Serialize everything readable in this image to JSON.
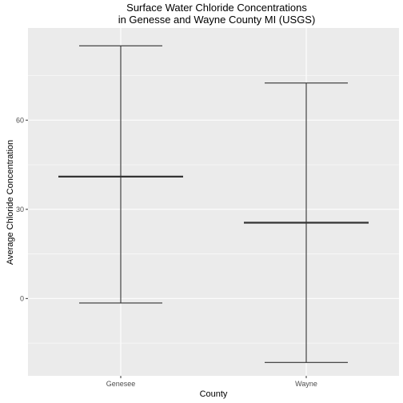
{
  "chart_data": {
    "type": "errorbar",
    "title_line1": "Surface Water Chloride Concentrations",
    "title_line2": "in Genesse and Wayne County MI (USGS)",
    "xlabel": "County",
    "ylabel": "Average Chloride Concentration",
    "categories": [
      "Genesee",
      "Wayne"
    ],
    "series": [
      {
        "mean": [
          41,
          25.5
        ],
        "upper": [
          85,
          72.5
        ],
        "lower": [
          -1.5,
          -21.5
        ]
      }
    ],
    "ylim": [
      -26,
      91
    ],
    "yticks": [
      0,
      30,
      60
    ],
    "ytick_labels": [
      "0",
      "30",
      "60"
    ],
    "grid": true,
    "legend": "none",
    "colors": {
      "panel": "#ebebeb",
      "grid_major": "#ffffff",
      "mark": "#333333",
      "tick_text": "#4d4d4d",
      "tick_line": "#333333"
    }
  }
}
